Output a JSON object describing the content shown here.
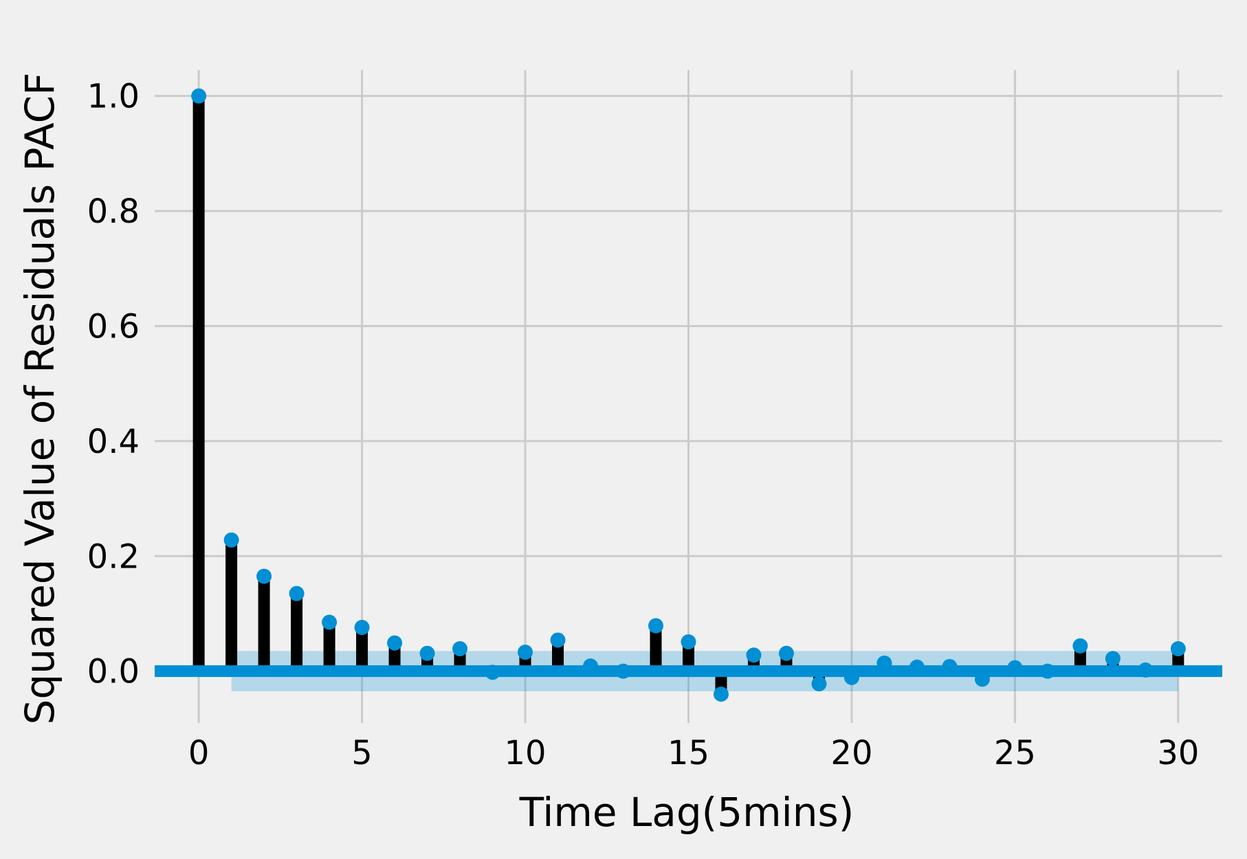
{
  "chart_data": {
    "type": "stem",
    "title": "",
    "xlabel": "Time Lag(5mins)",
    "ylabel": "Squared Value of Residuals PACF",
    "xlim": [
      -1.35,
      31.35
    ],
    "ylim": [
      -0.09,
      1.045
    ],
    "x_ticks": [
      0,
      5,
      10,
      15,
      20,
      25,
      30
    ],
    "x_tick_labels": [
      "0",
      "5",
      "10",
      "15",
      "20",
      "25",
      "30"
    ],
    "y_ticks": [
      0.0,
      0.2,
      0.4,
      0.6,
      0.8,
      1.0
    ],
    "y_tick_labels": [
      "0.0",
      "0.2",
      "0.4",
      "0.6",
      "0.8",
      "1.0"
    ],
    "grid": true,
    "lags": [
      0,
      1,
      2,
      3,
      4,
      5,
      6,
      7,
      8,
      9,
      10,
      11,
      12,
      13,
      14,
      15,
      16,
      17,
      18,
      19,
      20,
      21,
      22,
      23,
      24,
      25,
      26,
      27,
      28,
      29,
      30
    ],
    "values": [
      1.0,
      0.228,
      0.165,
      0.135,
      0.085,
      0.076,
      0.049,
      0.031,
      0.039,
      -0.002,
      0.033,
      0.054,
      0.009,
      0.0,
      0.079,
      0.051,
      -0.04,
      0.028,
      0.031,
      -0.022,
      -0.011,
      0.014,
      0.007,
      0.008,
      -0.014,
      0.006,
      0.0,
      0.044,
      0.022,
      0.002,
      0.039
    ],
    "confidence_band": {
      "from_lag": 1,
      "to_lag": 30,
      "upper": 0.035,
      "lower": -0.035
    },
    "colors": {
      "stem": "#000000",
      "marker": "#008fd5",
      "zero_line": "#008fd5",
      "band": "#008fd5",
      "grid": "#cbcbcb",
      "background": "#f0f0f0"
    }
  }
}
